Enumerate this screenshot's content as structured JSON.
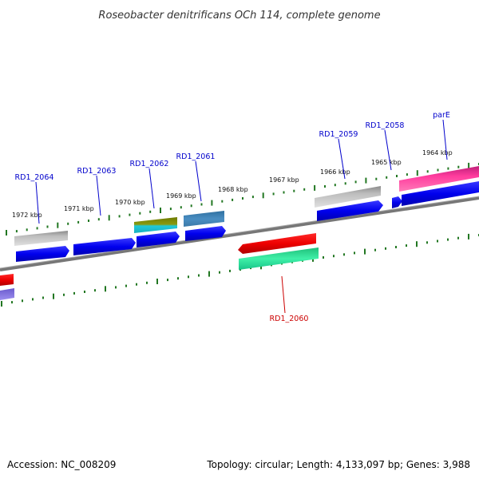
{
  "title": "Roseobacter denitrificans OCh 114, complete genome",
  "footer": {
    "accession": "Accession: NC_008209",
    "summary": "Topology: circular; Length: 4,133,097 bp; Genes: 3,988"
  },
  "colors": {
    "label_blue": "#0000cc",
    "label_red": "#cc0000",
    "tick_green": "#227722",
    "backbone": "#777777"
  },
  "scale_labels": [
    "1972 kbp",
    "1971 kbp",
    "1970 kbp",
    "1969 kbp",
    "1968 kbp",
    "1967 kbp",
    "1966 kbp",
    "1965 kbp",
    "1964 kbp"
  ],
  "gene_labels": [
    {
      "text": "RD1_2064",
      "color": "#0000cc"
    },
    {
      "text": "RD1_2063",
      "color": "#0000cc"
    },
    {
      "text": "RD1_2062",
      "color": "#0000cc"
    },
    {
      "text": "RD1_2061",
      "color": "#0000cc"
    },
    {
      "text": "RD1_2059",
      "color": "#0000cc"
    },
    {
      "text": "RD1_2058",
      "color": "#0000cc"
    },
    {
      "text": "parE",
      "color": "#0000cc"
    },
    {
      "text": "RD1_2060",
      "color": "#cc0000"
    }
  ]
}
